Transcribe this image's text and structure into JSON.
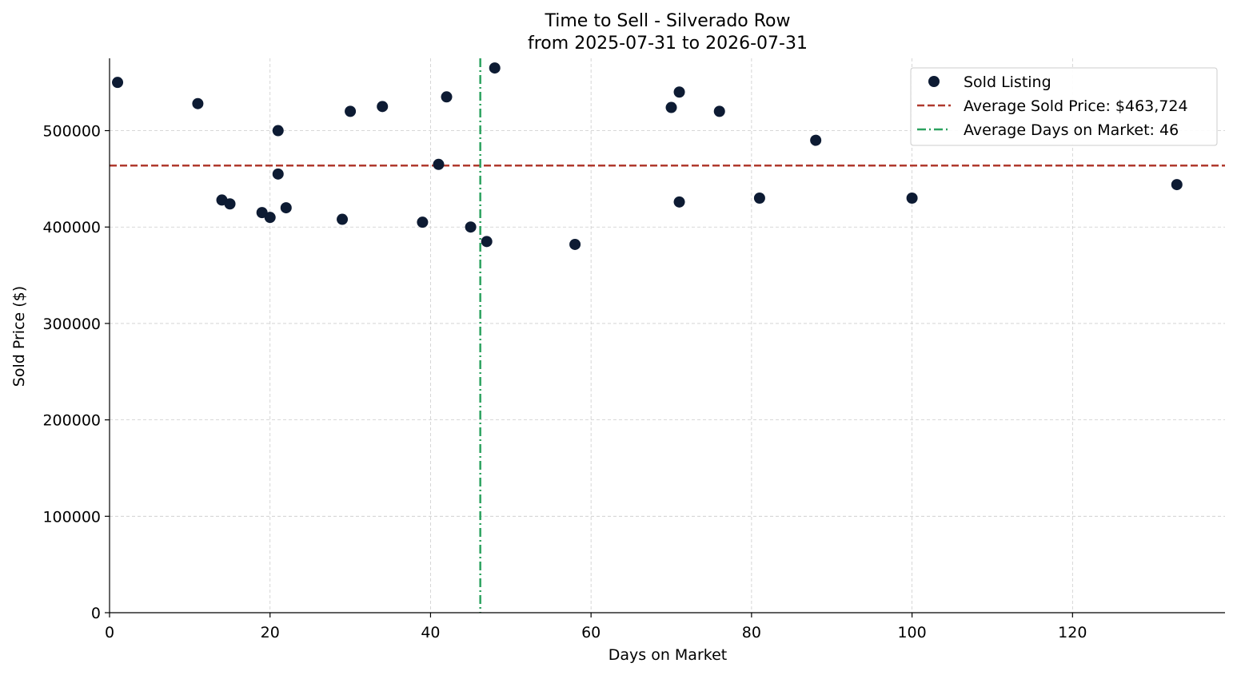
{
  "chart_data": {
    "type": "scatter",
    "title": "Time to Sell - Silverado Row",
    "subtitle": "from 2025-07-31 to 2026-07-31",
    "xlabel": "Days on Market",
    "ylabel": "Sold Price ($)",
    "xlim": [
      0,
      139
    ],
    "ylim": [
      0,
      575000
    ],
    "x_ticks": [
      0,
      20,
      40,
      60,
      80,
      100,
      120
    ],
    "y_ticks": [
      0,
      100000,
      200000,
      300000,
      400000,
      500000
    ],
    "x_tick_labels": [
      "0",
      "20",
      "40",
      "60",
      "80",
      "100",
      "120"
    ],
    "y_tick_labels": [
      "0",
      "100000",
      "200000",
      "300000",
      "400000",
      "500000"
    ],
    "grid": true,
    "legend_position": "top-right",
    "series": [
      {
        "name": "Sold Listing",
        "color": "#0d1b33",
        "points": [
          {
            "x": 1,
            "y": 550000
          },
          {
            "x": 11,
            "y": 528000
          },
          {
            "x": 14,
            "y": 428000
          },
          {
            "x": 15,
            "y": 424000
          },
          {
            "x": 19,
            "y": 415000
          },
          {
            "x": 20,
            "y": 410000
          },
          {
            "x": 21,
            "y": 500000
          },
          {
            "x": 21,
            "y": 455000
          },
          {
            "x": 22,
            "y": 420000
          },
          {
            "x": 29,
            "y": 408000
          },
          {
            "x": 30,
            "y": 520000
          },
          {
            "x": 34,
            "y": 525000
          },
          {
            "x": 39,
            "y": 405000
          },
          {
            "x": 41,
            "y": 465000
          },
          {
            "x": 42,
            "y": 535000
          },
          {
            "x": 45,
            "y": 400000
          },
          {
            "x": 47,
            "y": 385000
          },
          {
            "x": 48,
            "y": 565000
          },
          {
            "x": 58,
            "y": 382000
          },
          {
            "x": 70,
            "y": 524000
          },
          {
            "x": 71,
            "y": 540000
          },
          {
            "x": 71,
            "y": 426000
          },
          {
            "x": 76,
            "y": 520000
          },
          {
            "x": 81,
            "y": 430000
          },
          {
            "x": 88,
            "y": 490000
          },
          {
            "x": 100,
            "y": 430000
          },
          {
            "x": 133,
            "y": 444000
          }
        ]
      }
    ],
    "reference_lines": [
      {
        "name": "Average Sold Price: $463,724",
        "orientation": "horizontal",
        "value": 463724,
        "style": "dashed",
        "color": "#b03a2e"
      },
      {
        "name": "Average Days on Market: 46",
        "orientation": "vertical",
        "value": 46.2,
        "style": "dashdot",
        "color": "#2ca25f"
      }
    ]
  }
}
